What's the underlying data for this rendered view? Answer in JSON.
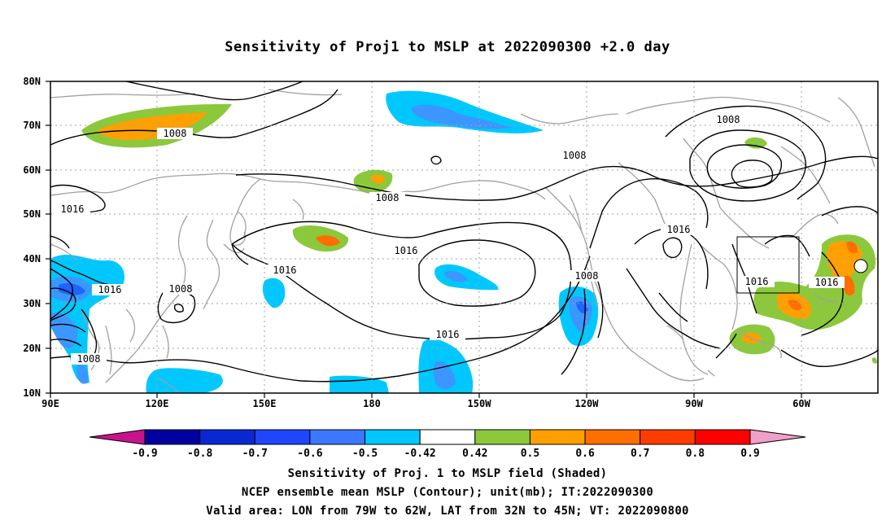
{
  "title": "Sensitivity of Proj1 to MSLP at 2022090300 +2.0 day",
  "map": {
    "lat_labels": [
      "80N",
      "70N",
      "60N",
      "50N",
      "40N",
      "30N",
      "20N",
      "10N"
    ],
    "lon_labels": [
      "90E",
      "120E",
      "150E",
      "180",
      "150W",
      "120W",
      "90W",
      "60W"
    ],
    "contour_labels": [
      "1008",
      "1008",
      "1008",
      "1008",
      "1008",
      "1016",
      "1016",
      "1016",
      "1016",
      "1016",
      "1016",
      "1016",
      "1016"
    ],
    "valid_box": {
      "lon": [
        "79W",
        "62W"
      ],
      "lat": [
        "32N",
        "45N"
      ]
    },
    "colors": {
      "contour": "#000000",
      "coastline": "#a0a0a0",
      "grid": "#a0a0a0",
      "pos_0_42_0_5": "#8cc83c",
      "pos_0_5_0_6": "#ffa000",
      "pos_0_6_0_7": "#ff6e00",
      "neg_0_5_0_42": "#00c8ff",
      "neg_0_6_0_5": "#3c96ff",
      "neg_0_7_0_6": "#1e64ff",
      "neg_0_8_0_7": "#0a32dc"
    }
  },
  "colorbar": {
    "labels": [
      "-0.9",
      "-0.8",
      "-0.7",
      "-0.6",
      "-0.5",
      "-0.42",
      "0.42",
      "0.5",
      "0.6",
      "0.7",
      "0.8",
      "0.9"
    ],
    "colors": [
      "#0000a0",
      "#0a28d2",
      "#1e46ff",
      "#3c78ff",
      "#00c8ff",
      "#ffffff",
      "#8cc83c",
      "#ffa000",
      "#ff6e00",
      "#ff3c00",
      "#ff0000"
    ],
    "low_end_color": "#c8148c",
    "high_end_color": "#f0a0c8"
  },
  "captions": [
    "Sensitivity of Proj. 1 to MSLP field (Shaded)",
    "NCEP ensemble mean MSLP (Contour); unit(mb); IT:2022090300",
    "Valid area: LON from 79W to 62W, LAT from 32N to 45N; VT: 2022090800"
  ]
}
